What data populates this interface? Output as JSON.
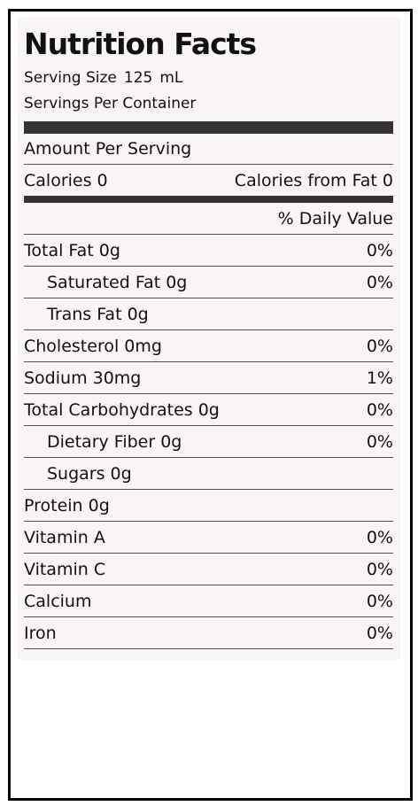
{
  "label": {
    "title": "Nutrition Facts",
    "serving_size_label": "Serving Size",
    "serving_size_value": "125",
    "serving_size_unit": "mL",
    "servings_per_container_label": "Servings Per Container",
    "amount_per_serving": "Amount Per Serving",
    "calories": "Calories 0",
    "calories_from_fat": "Calories from Fat 0",
    "daily_value_header": "% Daily Value"
  },
  "nutrients": [
    {
      "label": "Total Fat 0g",
      "value": "0%",
      "indent": false
    },
    {
      "label": "Saturated Fat 0g",
      "value": "0%",
      "indent": true
    },
    {
      "label": "Trans Fat 0g",
      "value": "",
      "indent": true
    },
    {
      "label": "Cholesterol 0mg",
      "value": "0%",
      "indent": false
    },
    {
      "label": "Sodium 30mg",
      "value": "1%",
      "indent": false
    },
    {
      "label": "Total Carbohydrates 0g",
      "value": "0%",
      "indent": false
    },
    {
      "label": "Dietary Fiber 0g",
      "value": "0%",
      "indent": true
    },
    {
      "label": "Sugars 0g",
      "value": "",
      "indent": true
    },
    {
      "label": "Protein 0g",
      "value": "",
      "indent": false
    },
    {
      "label": "Vitamin A",
      "value": "0%",
      "indent": false
    },
    {
      "label": "Vitamin C",
      "value": "0%",
      "indent": false
    },
    {
      "label": "Calcium",
      "value": "0%",
      "indent": false
    },
    {
      "label": "Iron",
      "value": "0%",
      "indent": false
    }
  ]
}
